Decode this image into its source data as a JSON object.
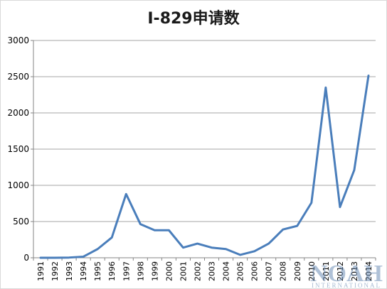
{
  "chart_data": {
    "type": "line",
    "title": "I-829申请数",
    "xlabel": "",
    "ylabel": "",
    "ylim": [
      0,
      3000
    ],
    "yticks": [
      "0",
      "500",
      "1000",
      "1500",
      "2000",
      "2500",
      "3000"
    ],
    "grid": "horizontal",
    "legend": "none",
    "categories": [
      "1991",
      "1992",
      "1993",
      "1994",
      "1995",
      "1996",
      "1997",
      "1998",
      "1999",
      "2000",
      "2001",
      "2002",
      "2003",
      "2004",
      "2005",
      "2006",
      "2007",
      "2008",
      "2009",
      "2010",
      "2011",
      "2012",
      "2013",
      "2014"
    ],
    "series": [
      {
        "values": [
          0,
          0,
          3,
          15,
          120,
          280,
          880,
          465,
          380,
          380,
          140,
          195,
          140,
          120,
          40,
          90,
          195,
          390,
          440,
          760,
          2350,
          700,
          1210,
          2515
        ]
      }
    ],
    "colors": {
      "line": "#4a7ebb",
      "grid": "#a6a6a6",
      "axis": "#868686"
    }
  },
  "watermark": {
    "main": "NOAH",
    "sub": "INTERNATIONAL"
  }
}
